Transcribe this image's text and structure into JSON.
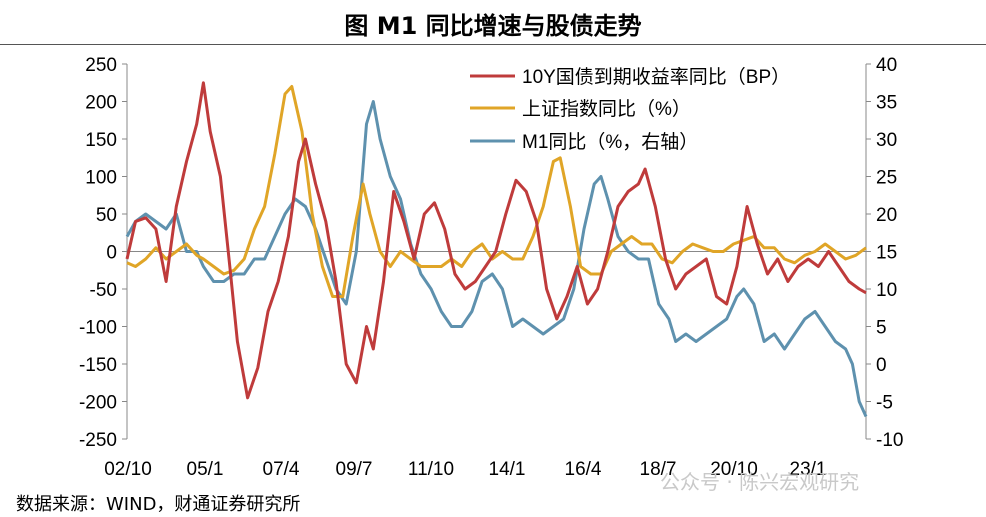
{
  "title": "图  M1 同比增速与股债走势",
  "source": "数据来源：WIND，财通证券研究所",
  "watermark": "公众号 · 陈兴宏观研究",
  "colors": {
    "yield": "#BF3B3B",
    "sse": "#E0A527",
    "m1": "#5E91AE"
  },
  "chart_data": {
    "type": "line",
    "x_ticks": [
      "02/10",
      "05/1",
      "07/4",
      "09/7",
      "11/10",
      "14/1",
      "16/4",
      "18/7",
      "20/10",
      "23/1"
    ],
    "left_axis": {
      "ticks": [
        250,
        200,
        150,
        100,
        50,
        0,
        -50,
        -100,
        -150,
        -200,
        -250
      ],
      "ylim": [
        -250,
        250
      ]
    },
    "right_axis": {
      "ticks": [
        40,
        35,
        30,
        25,
        20,
        15,
        10,
        5,
        0,
        -5,
        -10
      ],
      "ylim": [
        -10,
        40
      ]
    },
    "x_range": [
      2002.75,
      2024.5
    ],
    "series": [
      {
        "name": "10Y国债到期收益率同比（BP）",
        "axis": "left",
        "points": [
          [
            2002.75,
            -10
          ],
          [
            2003.0,
            40
          ],
          [
            2003.3,
            45
          ],
          [
            2003.6,
            30
          ],
          [
            2003.9,
            -40
          ],
          [
            2004.2,
            60
          ],
          [
            2004.5,
            120
          ],
          [
            2004.8,
            170
          ],
          [
            2005.0,
            225
          ],
          [
            2005.2,
            160
          ],
          [
            2005.5,
            100
          ],
          [
            2005.8,
            -30
          ],
          [
            2006.0,
            -120
          ],
          [
            2006.3,
            -195
          ],
          [
            2006.6,
            -155
          ],
          [
            2006.9,
            -80
          ],
          [
            2007.2,
            -40
          ],
          [
            2007.5,
            20
          ],
          [
            2007.8,
            120
          ],
          [
            2008.0,
            150
          ],
          [
            2008.3,
            90
          ],
          [
            2008.6,
            40
          ],
          [
            2008.9,
            -40
          ],
          [
            2009.2,
            -150
          ],
          [
            2009.5,
            -175
          ],
          [
            2009.8,
            -100
          ],
          [
            2010.0,
            -130
          ],
          [
            2010.3,
            -40
          ],
          [
            2010.6,
            80
          ],
          [
            2010.9,
            40
          ],
          [
            2011.2,
            -10
          ],
          [
            2011.5,
            50
          ],
          [
            2011.8,
            65
          ],
          [
            2012.1,
            30
          ],
          [
            2012.4,
            -30
          ],
          [
            2012.7,
            -50
          ],
          [
            2013.0,
            -40
          ],
          [
            2013.3,
            -20
          ],
          [
            2013.6,
            0
          ],
          [
            2013.9,
            50
          ],
          [
            2014.2,
            95
          ],
          [
            2014.5,
            80
          ],
          [
            2014.8,
            40
          ],
          [
            2015.1,
            -50
          ],
          [
            2015.4,
            -90
          ],
          [
            2015.7,
            -60
          ],
          [
            2016.0,
            -20
          ],
          [
            2016.3,
            -70
          ],
          [
            2016.6,
            -50
          ],
          [
            2016.9,
            0
          ],
          [
            2017.2,
            60
          ],
          [
            2017.5,
            80
          ],
          [
            2017.8,
            90
          ],
          [
            2018.0,
            110
          ],
          [
            2018.3,
            60
          ],
          [
            2018.6,
            -10
          ],
          [
            2018.9,
            -50
          ],
          [
            2019.2,
            -30
          ],
          [
            2019.5,
            -20
          ],
          [
            2019.8,
            -10
          ],
          [
            2020.1,
            -60
          ],
          [
            2020.4,
            -70
          ],
          [
            2020.7,
            -20
          ],
          [
            2021.0,
            60
          ],
          [
            2021.3,
            10
          ],
          [
            2021.6,
            -30
          ],
          [
            2021.9,
            -10
          ],
          [
            2022.2,
            -40
          ],
          [
            2022.5,
            -20
          ],
          [
            2022.8,
            -10
          ],
          [
            2023.1,
            -20
          ],
          [
            2023.4,
            0
          ],
          [
            2023.7,
            -20
          ],
          [
            2024.0,
            -40
          ],
          [
            2024.3,
            -50
          ],
          [
            2024.5,
            -55
          ]
        ]
      },
      {
        "name": "上证指数同比（%）",
        "axis": "left",
        "points": [
          [
            2002.75,
            -15
          ],
          [
            2003.0,
            -20
          ],
          [
            2003.3,
            -10
          ],
          [
            2003.6,
            5
          ],
          [
            2003.9,
            -10
          ],
          [
            2004.2,
            0
          ],
          [
            2004.5,
            10
          ],
          [
            2004.8,
            -5
          ],
          [
            2005.0,
            -10
          ],
          [
            2005.3,
            -20
          ],
          [
            2005.6,
            -30
          ],
          [
            2005.9,
            -25
          ],
          [
            2006.2,
            -10
          ],
          [
            2006.5,
            30
          ],
          [
            2006.8,
            60
          ],
          [
            2007.1,
            130
          ],
          [
            2007.4,
            210
          ],
          [
            2007.6,
            220
          ],
          [
            2007.9,
            160
          ],
          [
            2008.2,
            50
          ],
          [
            2008.5,
            -20
          ],
          [
            2008.8,
            -60
          ],
          [
            2009.1,
            -60
          ],
          [
            2009.4,
            20
          ],
          [
            2009.7,
            90
          ],
          [
            2009.9,
            50
          ],
          [
            2010.2,
            0
          ],
          [
            2010.5,
            -20
          ],
          [
            2010.8,
            0
          ],
          [
            2011.1,
            -10
          ],
          [
            2011.4,
            -20
          ],
          [
            2011.7,
            -20
          ],
          [
            2012.0,
            -20
          ],
          [
            2012.3,
            -10
          ],
          [
            2012.6,
            -20
          ],
          [
            2012.9,
            0
          ],
          [
            2013.2,
            10
          ],
          [
            2013.5,
            -10
          ],
          [
            2013.8,
            0
          ],
          [
            2014.1,
            -10
          ],
          [
            2014.4,
            -10
          ],
          [
            2014.7,
            20
          ],
          [
            2015.0,
            60
          ],
          [
            2015.3,
            120
          ],
          [
            2015.5,
            125
          ],
          [
            2015.8,
            60
          ],
          [
            2016.1,
            -20
          ],
          [
            2016.4,
            -30
          ],
          [
            2016.7,
            -30
          ],
          [
            2017.0,
            0
          ],
          [
            2017.3,
            10
          ],
          [
            2017.6,
            20
          ],
          [
            2017.9,
            10
          ],
          [
            2018.2,
            10
          ],
          [
            2018.5,
            -10
          ],
          [
            2018.8,
            -15
          ],
          [
            2019.1,
            0
          ],
          [
            2019.4,
            10
          ],
          [
            2019.7,
            5
          ],
          [
            2020.0,
            0
          ],
          [
            2020.3,
            0
          ],
          [
            2020.6,
            10
          ],
          [
            2020.9,
            15
          ],
          [
            2021.2,
            20
          ],
          [
            2021.5,
            5
          ],
          [
            2021.8,
            5
          ],
          [
            2022.1,
            -10
          ],
          [
            2022.4,
            -15
          ],
          [
            2022.7,
            -5
          ],
          [
            2023.0,
            0
          ],
          [
            2023.3,
            10
          ],
          [
            2023.6,
            0
          ],
          [
            2023.9,
            -10
          ],
          [
            2024.2,
            -5
          ],
          [
            2024.5,
            5
          ]
        ]
      },
      {
        "name": "M1同比（%，右轴）",
        "axis": "right",
        "points": [
          [
            2002.75,
            17
          ],
          [
            2003.0,
            19
          ],
          [
            2003.3,
            20
          ],
          [
            2003.6,
            19
          ],
          [
            2003.9,
            18
          ],
          [
            2004.2,
            20
          ],
          [
            2004.5,
            15
          ],
          [
            2004.8,
            15
          ],
          [
            2005.0,
            13
          ],
          [
            2005.3,
            11
          ],
          [
            2005.6,
            11
          ],
          [
            2005.9,
            12
          ],
          [
            2006.2,
            12
          ],
          [
            2006.5,
            14
          ],
          [
            2006.8,
            14
          ],
          [
            2007.1,
            17
          ],
          [
            2007.4,
            20
          ],
          [
            2007.7,
            22
          ],
          [
            2008.0,
            21
          ],
          [
            2008.3,
            18
          ],
          [
            2008.6,
            14
          ],
          [
            2008.9,
            10
          ],
          [
            2009.2,
            8
          ],
          [
            2009.5,
            15
          ],
          [
            2009.8,
            32
          ],
          [
            2010.0,
            35
          ],
          [
            2010.2,
            30
          ],
          [
            2010.5,
            25
          ],
          [
            2010.8,
            22
          ],
          [
            2011.1,
            16
          ],
          [
            2011.4,
            12
          ],
          [
            2011.7,
            10
          ],
          [
            2012.0,
            7
          ],
          [
            2012.3,
            5
          ],
          [
            2012.6,
            5
          ],
          [
            2012.9,
            7
          ],
          [
            2013.2,
            11
          ],
          [
            2013.5,
            12
          ],
          [
            2013.8,
            10
          ],
          [
            2014.1,
            5
          ],
          [
            2014.4,
            6
          ],
          [
            2014.7,
            5
          ],
          [
            2015.0,
            4
          ],
          [
            2015.3,
            5
          ],
          [
            2015.6,
            6
          ],
          [
            2015.9,
            10
          ],
          [
            2016.2,
            18
          ],
          [
            2016.5,
            24
          ],
          [
            2016.7,
            25
          ],
          [
            2016.9,
            22
          ],
          [
            2017.2,
            17
          ],
          [
            2017.5,
            15
          ],
          [
            2017.8,
            14
          ],
          [
            2018.1,
            14
          ],
          [
            2018.4,
            8
          ],
          [
            2018.7,
            6
          ],
          [
            2018.9,
            3
          ],
          [
            2019.2,
            4
          ],
          [
            2019.5,
            3
          ],
          [
            2019.8,
            4
          ],
          [
            2020.1,
            5
          ],
          [
            2020.4,
            6
          ],
          [
            2020.7,
            9
          ],
          [
            2020.9,
            10
          ],
          [
            2021.2,
            8
          ],
          [
            2021.5,
            3
          ],
          [
            2021.8,
            4
          ],
          [
            2022.1,
            2
          ],
          [
            2022.4,
            4
          ],
          [
            2022.7,
            6
          ],
          [
            2023.0,
            7
          ],
          [
            2023.3,
            5
          ],
          [
            2023.6,
            3
          ],
          [
            2023.9,
            2
          ],
          [
            2024.1,
            0
          ],
          [
            2024.3,
            -5
          ],
          [
            2024.5,
            -7
          ]
        ]
      }
    ]
  }
}
